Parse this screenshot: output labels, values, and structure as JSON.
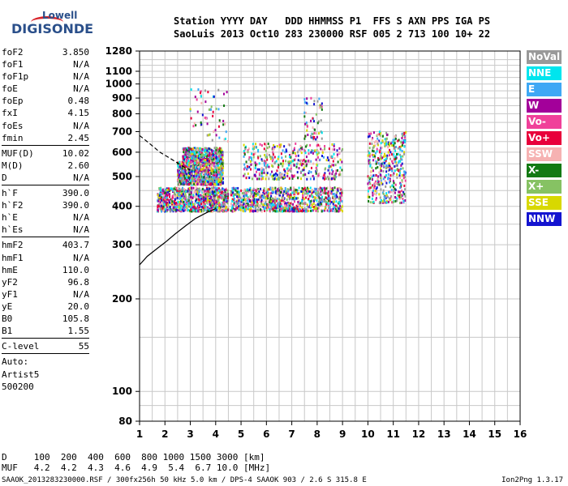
{
  "logo": {
    "line1": "Lowell",
    "line2": "DIGISONDE"
  },
  "header": {
    "labels": "Station YYYY DAY   DDD HHMMSS P1  FFS S AXN PPS IGA PS",
    "values": "SaoLuis 2013 Oct10 283 230000 RSF 005 2 713 100 10+ 22"
  },
  "params": {
    "group1": [
      {
        "k": "foF2",
        "v": "3.850"
      },
      {
        "k": "foF1",
        "v": "N/A"
      },
      {
        "k": "foF1p",
        "v": "N/A"
      },
      {
        "k": "foE",
        "v": "N/A"
      },
      {
        "k": "foEp",
        "v": "0.48"
      },
      {
        "k": "fxI",
        "v": "4.15"
      },
      {
        "k": "foEs",
        "v": "N/A"
      },
      {
        "k": "fmin",
        "v": "2.45"
      }
    ],
    "group2": [
      {
        "k": "MUF(D)",
        "v": "10.02"
      },
      {
        "k": "M(D)",
        "v": "2.60"
      },
      {
        "k": "D",
        "v": "N/A"
      }
    ],
    "group3": [
      {
        "k": "h`F",
        "v": "390.0"
      },
      {
        "k": "h`F2",
        "v": "390.0"
      },
      {
        "k": "h`E",
        "v": "N/A"
      },
      {
        "k": "h`Es",
        "v": "N/A"
      }
    ],
    "group4": [
      {
        "k": "hmF2",
        "v": "403.7"
      },
      {
        "k": "hmF1",
        "v": "N/A"
      },
      {
        "k": "hmE",
        "v": "110.0"
      },
      {
        "k": "yF2",
        "v": "96.8"
      },
      {
        "k": "yF1",
        "v": "N/A"
      },
      {
        "k": "yE",
        "v": "20.0"
      },
      {
        "k": "B0",
        "v": "105.8"
      },
      {
        "k": "B1",
        "v": "1.55"
      }
    ],
    "group5": [
      {
        "k": "C-level",
        "v": "55"
      }
    ],
    "auto": [
      "Auto:",
      "Artist5",
      "500200"
    ]
  },
  "legend": [
    {
      "label": "NoVal",
      "color": "#999999"
    },
    {
      "label": "NNE",
      "color": "#00e5ee"
    },
    {
      "label": "E",
      "color": "#3ea8f5"
    },
    {
      "label": "W",
      "color": "#a3009a"
    },
    {
      "label": "Vo-",
      "color": "#f0409a"
    },
    {
      "label": "Vo+",
      "color": "#e8003b"
    },
    {
      "label": "SSW",
      "color": "#f6b2b2"
    },
    {
      "label": "X-",
      "color": "#137a13"
    },
    {
      "label": "X+",
      "color": "#86c263"
    },
    {
      "label": "SSE",
      "color": "#d8d800"
    },
    {
      "label": "NNW",
      "color": "#1414d0"
    }
  ],
  "bottom": {
    "d_row": "D     100  200  400  600  800 1000 1500 3000 [km]",
    "muf_row": "MUF   4.2  4.2  4.3  4.6  4.9  5.4  6.7 10.0 [MHz]",
    "footer": "SAAOK_2013283230000.RSF / 300fx256h 50 kHz 5.0 km / DPS-4 SAAOK 903 / 2.6 S 315.8 E",
    "version": "Ion2Png 1.3.17"
  },
  "chart_data": {
    "type": "scatter",
    "title": "",
    "xlabel": "",
    "ylabel": "",
    "xlim": [
      1,
      16
    ],
    "ylim": [
      80,
      1280
    ],
    "y_scale": "log",
    "x_ticks": [
      1,
      2,
      3,
      4,
      5,
      6,
      7,
      8,
      9,
      10,
      11,
      12,
      13,
      14,
      15,
      16
    ],
    "y_ticks": [
      80,
      100,
      200,
      300,
      400,
      500,
      600,
      700,
      800,
      900,
      1000,
      1100,
      1280
    ],
    "grid": true,
    "clusters": [
      {
        "x_range": [
          1.7,
          4.5
        ],
        "y_range": [
          385,
          460
        ],
        "density": "high"
      },
      {
        "x_range": [
          2.5,
          4.3
        ],
        "y_range": [
          470,
          560
        ],
        "density": "high"
      },
      {
        "x_range": [
          2.7,
          4.3
        ],
        "y_range": [
          560,
          620
        ],
        "density": "medium"
      },
      {
        "x_range": [
          4.6,
          9.0
        ],
        "y_range": [
          385,
          460
        ],
        "density": "high"
      },
      {
        "x_range": [
          5.1,
          9.0
        ],
        "y_range": [
          490,
          640
        ],
        "density": "medium"
      },
      {
        "x_range": [
          10.0,
          11.5
        ],
        "y_range": [
          410,
          700
        ],
        "density": "medium"
      },
      {
        "x_range": [
          3.0,
          4.5
        ],
        "y_range": [
          650,
          960
        ],
        "density": "sparse"
      },
      {
        "x_range": [
          7.5,
          8.2
        ],
        "y_range": [
          660,
          900
        ],
        "density": "sparse"
      }
    ],
    "dashed_curve": [
      [
        1.0,
        680
      ],
      [
        1.4,
        640
      ],
      [
        1.8,
        600
      ],
      [
        2.1,
        580
      ],
      [
        2.4,
        560
      ],
      [
        2.7,
        540
      ],
      [
        3.0,
        525
      ]
    ],
    "solid_curve": [
      [
        1.0,
        258
      ],
      [
        1.3,
        275
      ],
      [
        1.7,
        292
      ],
      [
        2.0,
        305
      ],
      [
        2.4,
        325
      ],
      [
        2.8,
        345
      ],
      [
        3.2,
        365
      ],
      [
        3.6,
        380
      ],
      [
        4.0,
        393
      ]
    ]
  }
}
